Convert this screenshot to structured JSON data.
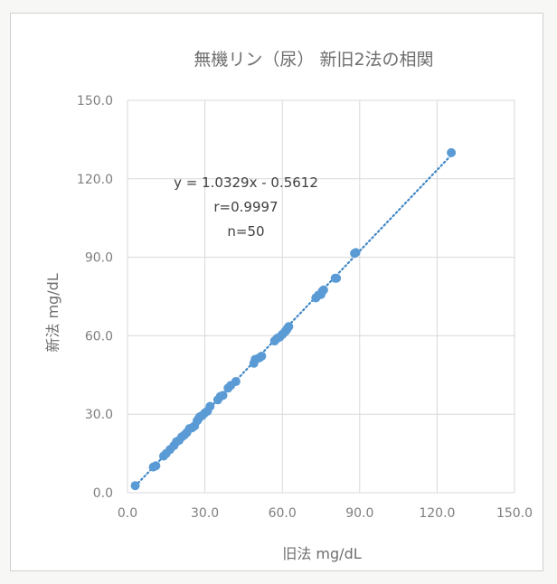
{
  "chart_data": {
    "type": "scatter",
    "title": "無機リン（尿） 新旧2法の相関",
    "xlabel": "旧法 mg/dL",
    "ylabel": "新法 mg/dL",
    "xlim": [
      0,
      150
    ],
    "ylim": [
      0,
      150
    ],
    "xticks": [
      "0.0",
      "30.0",
      "60.0",
      "90.0",
      "120.0",
      "150.0"
    ],
    "yticks": [
      "0.0",
      "30.0",
      "60.0",
      "90.0",
      "120.0",
      "150.0"
    ],
    "grid": true,
    "annotation": [
      "y = 1.0329x - 0.5612",
      "r=0.9997",
      "n=50"
    ],
    "trendline": {
      "slope": 1.0329,
      "intercept": -0.5612,
      "x_range": [
        3,
        125.5
      ],
      "style": "dotted"
    },
    "colors": {
      "point": "#5b9bd5",
      "trendline": "#3f86c6",
      "grid": "#d9d9d9",
      "text": "#7f7f7f"
    },
    "points": [
      [
        3.0,
        2.7
      ],
      [
        10.0,
        9.8
      ],
      [
        11.0,
        10.3
      ],
      [
        14.0,
        14.0
      ],
      [
        15.0,
        15.0
      ],
      [
        16.5,
        16.5
      ],
      [
        18.0,
        18.0
      ],
      [
        19.0,
        19.5
      ],
      [
        20.0,
        20.0
      ],
      [
        21.0,
        21.3
      ],
      [
        22.0,
        22.0
      ],
      [
        23.0,
        23.0
      ],
      [
        24.0,
        24.5
      ],
      [
        25.0,
        24.8
      ],
      [
        26.0,
        25.5
      ],
      [
        27.0,
        27.5
      ],
      [
        27.5,
        28.2
      ],
      [
        28.0,
        29.0
      ],
      [
        29.0,
        29.5
      ],
      [
        30.0,
        30.5
      ],
      [
        31.0,
        31.2
      ],
      [
        32.0,
        33.0
      ],
      [
        35.0,
        35.5
      ],
      [
        36.0,
        36.8
      ],
      [
        37.0,
        37.2
      ],
      [
        39.0,
        40.0
      ],
      [
        40.0,
        41.0
      ],
      [
        42.0,
        42.5
      ],
      [
        49.0,
        49.5
      ],
      [
        49.5,
        51.0
      ],
      [
        51.0,
        51.5
      ],
      [
        52.0,
        52.2
      ],
      [
        57.0,
        58.0
      ],
      [
        58.0,
        59.0
      ],
      [
        59.0,
        59.5
      ],
      [
        60.0,
        60.5
      ],
      [
        61.0,
        61.5
      ],
      [
        61.5,
        62.0
      ],
      [
        62.0,
        62.8
      ],
      [
        62.5,
        63.5
      ],
      [
        73.0,
        74.5
      ],
      [
        74.0,
        75.5
      ],
      [
        75.0,
        75.8
      ],
      [
        75.5,
        77.0
      ],
      [
        76.0,
        77.5
      ],
      [
        80.5,
        82.0
      ],
      [
        81.0,
        82.0
      ],
      [
        88.0,
        91.5
      ],
      [
        88.5,
        91.8
      ],
      [
        125.5,
        130.0
      ]
    ]
  }
}
